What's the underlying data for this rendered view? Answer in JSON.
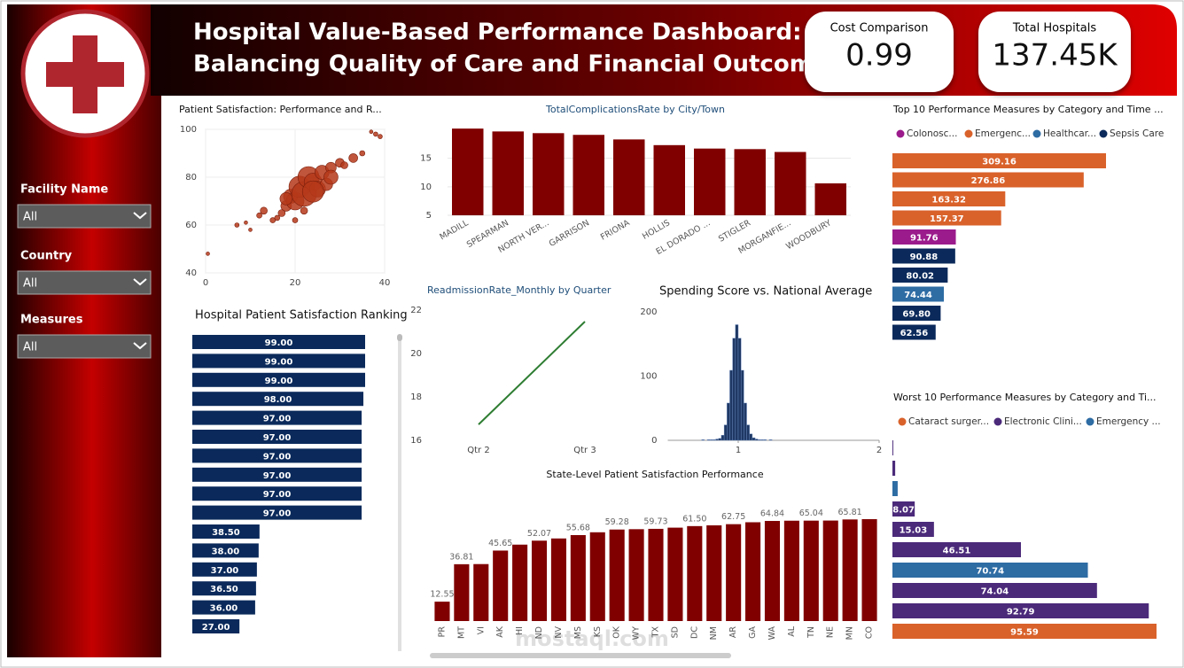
{
  "header": {
    "title_line1": "Hospital Value-Based Performance Dashboard:",
    "title_line2": "Balancing Quality of Care and Financial Outcomes"
  },
  "kpis": [
    {
      "label": "Cost Comparison",
      "value": 0.99
    },
    {
      "label": "Total Hospitals",
      "value": 137450,
      "value_label": "137.45K"
    }
  ],
  "filters": [
    {
      "label": "Facility Name",
      "value": "All"
    },
    {
      "label": "Country",
      "value": "All"
    },
    {
      "label": "Measures",
      "value": "All"
    }
  ],
  "watermark": "mostaql.com",
  "chart_data": [
    {
      "type": "scatter",
      "title": "Patient Satisfaction: Performance and R...",
      "color": "#b5381a",
      "grid": true,
      "x": [
        0.5,
        7,
        9,
        12,
        10,
        13,
        15,
        16,
        17,
        18,
        19,
        20,
        21,
        22,
        23,
        24,
        25,
        26,
        27,
        28,
        30,
        31,
        33,
        35,
        20,
        22,
        24,
        18,
        37,
        38,
        39,
        28
      ],
      "values": [
        48,
        60,
        61,
        64,
        58,
        66,
        62,
        63,
        65,
        68,
        72,
        70,
        76,
        73,
        80,
        78,
        75,
        82,
        77,
        84,
        86,
        85,
        88,
        90,
        62,
        66,
        74,
        71,
        99,
        98,
        97,
        80
      ],
      "sizes": [
        2,
        2.5,
        2,
        3,
        2,
        4,
        3,
        3,
        4,
        6,
        8,
        10,
        12,
        14,
        12,
        10,
        9,
        8,
        7,
        6,
        5,
        4,
        5,
        3,
        3,
        4,
        12,
        7,
        2,
        2.5,
        2.5,
        8
      ],
      "xlim": [
        0,
        40
      ],
      "xticks": [
        0,
        20,
        40
      ],
      "ylim": [
        40,
        100
      ],
      "yticks": [
        40,
        60,
        80,
        100
      ]
    },
    {
      "type": "bar",
      "title": "TotalComplicationsRate by City/Town",
      "color": "#800000",
      "grid": true,
      "categories": [
        "MADILL",
        "SPEARMAN",
        "NORTH VER...",
        "GARRISON",
        "FRIONA",
        "HOLLIS",
        "EL DORADO ...",
        "STIGLER",
        "MORGANFIE...",
        "WOODBURY"
      ],
      "values": [
        20.2,
        19.7,
        19.4,
        19.1,
        18.3,
        17.3,
        16.7,
        16.6,
        16.1,
        10.6
      ],
      "ylim": [
        5,
        21
      ],
      "yticks": [
        5,
        10,
        15
      ]
    },
    {
      "type": "hbar",
      "title": "Hospital Patient Satisfaction Ranking",
      "color": "#0b2a5b",
      "values": [
        99,
        99,
        99,
        98,
        97,
        97,
        97,
        97,
        97,
        97,
        38.5,
        38,
        37,
        36.5,
        36,
        27
      ],
      "value_labels": [
        "99.00",
        "99.00",
        "99.00",
        "98.00",
        "97.00",
        "97.00",
        "97.00",
        "97.00",
        "97.00",
        "97.00",
        "38.50",
        "38.00",
        "37.00",
        "36.50",
        "36.00",
        "27.00"
      ]
    },
    {
      "type": "line",
      "title": "ReadmissionRate_Monthly by Quarter",
      "color": "#2e7d32",
      "categories": [
        "Qtr 2",
        "Qtr 3"
      ],
      "values": [
        16.73,
        21.47
      ],
      "ylim": [
        16,
        22
      ],
      "yticks": [
        16,
        18,
        20,
        22
      ]
    },
    {
      "type": "histogram",
      "title": "Spending Score vs. National Average",
      "color": "#1f3864",
      "bins": [
        0.7,
        0.72,
        0.74,
        0.76,
        0.78,
        0.8,
        0.82,
        0.84,
        0.86,
        0.88,
        0.9,
        0.92,
        0.94,
        0.96,
        0.98,
        1.0,
        1.02,
        1.04,
        1.06,
        1.08,
        1.1,
        1.12,
        1.14,
        1.16,
        1.18,
        1.2,
        1.22,
        1.24,
        1.26,
        1.28,
        1.3
      ],
      "values": [
        0,
        0,
        1,
        0,
        1,
        1,
        1,
        2,
        3,
        8,
        24,
        58,
        109,
        159,
        180,
        159,
        109,
        58,
        24,
        10,
        4,
        2,
        1,
        1,
        1,
        0,
        1,
        0,
        0,
        0
      ],
      "xlim": [
        0.5,
        2
      ],
      "xticks": [
        1,
        2
      ],
      "ylim": [
        0,
        200
      ],
      "yticks": [
        0,
        100,
        200
      ]
    },
    {
      "type": "bar",
      "title": "State-Level Patient Satisfaction Performance",
      "color": "#800000",
      "categories": [
        "PR",
        "MT",
        "VI",
        "AK",
        "HI",
        "ND",
        "NV",
        "MS",
        "KS",
        "OK",
        "WY",
        "TX",
        "SD",
        "DC",
        "NM",
        "AR",
        "GA",
        "WA",
        "AL",
        "TN",
        "NE",
        "MN",
        "CO"
      ],
      "values": [
        12.55,
        36.81,
        36.9,
        45.65,
        49.5,
        52.07,
        53.5,
        55.68,
        57.5,
        59.28,
        59.5,
        59.73,
        60.5,
        61.5,
        62.0,
        62.75,
        64.0,
        64.84,
        65.0,
        65.04,
        65.1,
        65.81,
        66.0
      ],
      "value_labels": [
        "12.55",
        "36.81",
        null,
        "45.65",
        null,
        "52.07",
        null,
        "55.68",
        null,
        "59.28",
        null,
        "59.73",
        null,
        "61.50",
        null,
        "62.75",
        null,
        "64.84",
        null,
        "65.04",
        null,
        "65.81",
        null
      ]
    },
    {
      "type": "hbar",
      "title": "Top 10 Performance Measures by Category and Time ...",
      "series": [
        {
          "name": "Colonosc...",
          "color": "#9b1b8c"
        },
        {
          "name": "Emergenc...",
          "color": "#d9622b"
        },
        {
          "name": "Healthcar...",
          "color": "#2e6ca4"
        },
        {
          "name": "Sepsis Care",
          "color": "#0b2a5b"
        }
      ],
      "values": [
        309.16,
        276.86,
        163.32,
        157.37,
        91.76,
        90.88,
        80.02,
        74.44,
        69.8,
        62.56
      ],
      "value_labels": [
        "309.16",
        "276.86",
        "163.32",
        "157.37",
        "91.76",
        "90.88",
        "80.02",
        "74.44",
        "69.80",
        "62.56"
      ],
      "colors": [
        "#d9622b",
        "#d9622b",
        "#d9622b",
        "#d9622b",
        "#9b1b8c",
        "#0b2a5b",
        "#0b2a5b",
        "#2e6ca4",
        "#0b2a5b",
        "#0b2a5b"
      ]
    },
    {
      "type": "hbar",
      "title": "Worst 10 Performance Measures by Category and Ti...",
      "series": [
        {
          "name": "Cataract surger...",
          "color": "#d9622b"
        },
        {
          "name": "Electronic Clini...",
          "color": "#4b2a7a"
        },
        {
          "name": "Emergency ...",
          "color": "#2e6ca4"
        }
      ],
      "values": [
        0.3,
        1.0,
        1.9,
        8.07,
        15.03,
        46.51,
        70.74,
        74.04,
        92.79,
        95.59
      ],
      "value_labels": [
        null,
        null,
        null,
        "8.07",
        "15.03",
        "46.51",
        "70.74",
        "74.04",
        "92.79",
        "95.59"
      ],
      "colors": [
        "#4b2a7a",
        "#4b2a7a",
        "#2e6ca4",
        "#4b2a7a",
        "#4b2a7a",
        "#4b2a7a",
        "#2e6ca4",
        "#4b2a7a",
        "#4b2a7a",
        "#d9622b"
      ]
    }
  ]
}
